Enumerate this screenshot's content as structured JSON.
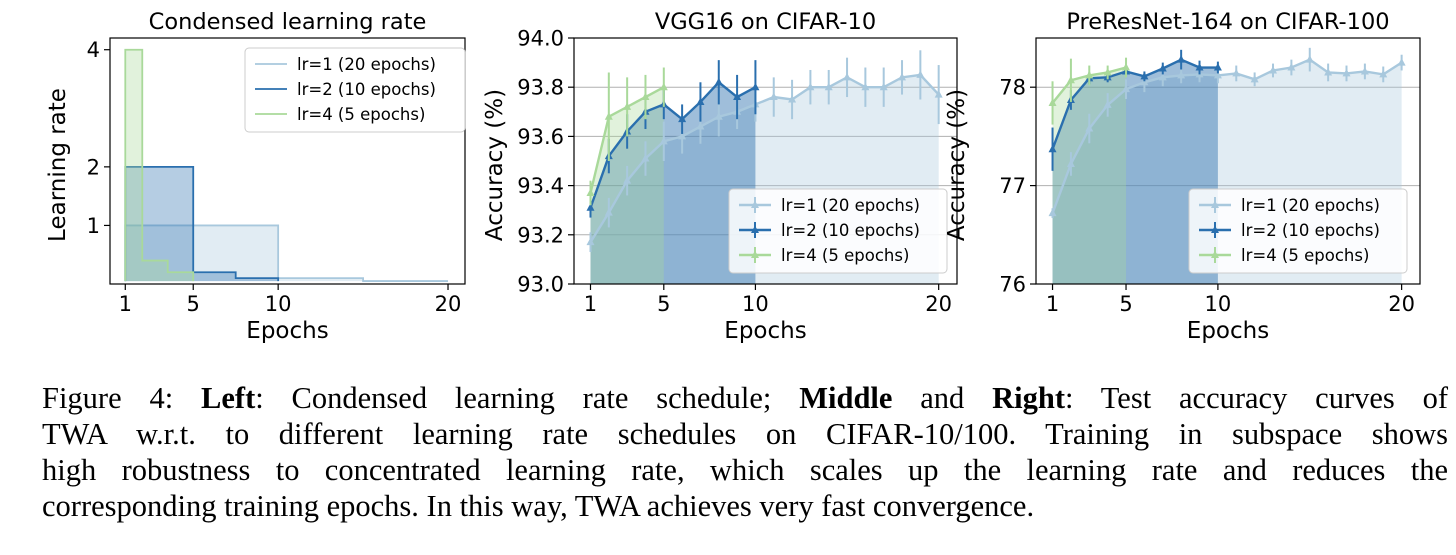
{
  "chart_data": [
    {
      "type": "line",
      "title": "Condensed learning rate",
      "xlabel": "Epochs",
      "ylabel": "Learning rate",
      "xlim": [
        0.1,
        21
      ],
      "ylim": [
        0,
        4.2
      ],
      "xticks": [
        1,
        5,
        10,
        20
      ],
      "yticks": [
        1,
        2,
        4
      ],
      "legend": "top-right",
      "series": [
        {
          "name": "lr=1 (20 epochs)",
          "color": "#a8c8dd",
          "steps": [
            [
              1,
              1
            ],
            [
              10,
              0.1
            ],
            [
              15,
              0.05
            ],
            [
              20,
              0.05
            ]
          ]
        },
        {
          "name": "lr=2 (10 epochs)",
          "color": "#2a6fae",
          "steps": [
            [
              1,
              2
            ],
            [
              5,
              0.2
            ],
            [
              7.5,
              0.1
            ],
            [
              10,
              0.1
            ]
          ]
        },
        {
          "name": "lr=4 (5 epochs)",
          "color": "#a9d99a",
          "steps": [
            [
              1,
              4
            ],
            [
              2,
              0.4
            ],
            [
              3.5,
              0.2
            ],
            [
              5,
              0.2
            ]
          ]
        }
      ]
    },
    {
      "type": "line",
      "title": "VGG16 on CIFAR-10",
      "xlabel": "Epochs",
      "ylabel": "Accuracy (%)",
      "xlim": [
        0.1,
        21
      ],
      "ylim": [
        93.0,
        94.0
      ],
      "xticks": [
        1,
        5,
        10,
        20
      ],
      "yticks": [
        "93.0",
        "93.2",
        "93.4",
        "93.6",
        "93.8",
        "94.0"
      ],
      "legend": "bottom-right",
      "series": [
        {
          "name": "lr=1 (20 epochs)",
          "color": "#a8c8dd",
          "x": [
            1,
            2,
            3,
            4,
            5,
            6,
            7,
            8,
            9,
            10,
            11,
            12,
            13,
            14,
            15,
            16,
            17,
            18,
            19,
            20
          ],
          "y": [
            93.17,
            93.29,
            93.42,
            93.51,
            93.58,
            93.6,
            93.64,
            93.68,
            93.7,
            93.73,
            93.76,
            93.75,
            93.8,
            93.8,
            93.84,
            93.8,
            93.8,
            93.84,
            93.85,
            93.77
          ],
          "err": [
            0.04,
            0.06,
            0.06,
            0.07,
            0.08,
            0.07,
            0.07,
            0.08,
            0.07,
            0.07,
            0.08,
            0.08,
            0.07,
            0.07,
            0.08,
            0.08,
            0.08,
            0.07,
            0.1,
            0.12
          ]
        },
        {
          "name": "lr=2 (10 epochs)",
          "color": "#2a6fae",
          "x": [
            1,
            2,
            3,
            4,
            5,
            6,
            7,
            8,
            9,
            10
          ],
          "y": [
            93.31,
            93.52,
            93.62,
            93.7,
            93.73,
            93.67,
            93.74,
            93.82,
            93.76,
            93.8
          ],
          "err": [
            0.04,
            0.07,
            0.07,
            0.07,
            0.06,
            0.06,
            0.08,
            0.09,
            0.09,
            0.11
          ]
        },
        {
          "name": "lr=4 (5 epochs)",
          "color": "#a9d99a",
          "x": [
            1,
            2,
            3,
            4,
            5
          ],
          "y": [
            93.37,
            93.68,
            93.72,
            93.76,
            93.8
          ],
          "err": [
            0.05,
            0.18,
            0.12,
            0.09,
            0.08
          ]
        }
      ]
    },
    {
      "type": "line",
      "title": "PreResNet-164 on CIFAR-100",
      "xlabel": "Epochs",
      "ylabel": "Accuracy (%)",
      "xlim": [
        0.1,
        21
      ],
      "ylim": [
        76,
        78.5
      ],
      "xticks": [
        1,
        5,
        10,
        20
      ],
      "yticks": [
        76,
        77,
        78
      ],
      "legend": "bottom-right",
      "series": [
        {
          "name": "lr=1 (20 epochs)",
          "color": "#a8c8dd",
          "x": [
            1,
            2,
            3,
            4,
            5,
            6,
            7,
            8,
            9,
            10,
            11,
            12,
            13,
            14,
            15,
            16,
            17,
            18,
            19,
            20
          ],
          "y": [
            76.72,
            77.22,
            77.58,
            77.82,
            77.98,
            78.05,
            78.1,
            78.12,
            78.13,
            78.12,
            78.14,
            78.08,
            78.17,
            78.2,
            78.28,
            78.15,
            78.14,
            78.16,
            78.13,
            78.25
          ],
          "err": [
            0.05,
            0.12,
            0.15,
            0.12,
            0.1,
            0.1,
            0.09,
            0.08,
            0.08,
            0.08,
            0.08,
            0.07,
            0.07,
            0.08,
            0.12,
            0.09,
            0.08,
            0.08,
            0.08,
            0.08
          ]
        },
        {
          "name": "lr=2 (10 epochs)",
          "color": "#2a6fae",
          "x": [
            1,
            2,
            3,
            4,
            5,
            6,
            7,
            8,
            9,
            10
          ],
          "y": [
            77.37,
            77.87,
            78.09,
            78.1,
            78.16,
            78.11,
            78.19,
            78.28,
            78.2,
            78.2
          ],
          "err": [
            0.22,
            0.1,
            0.06,
            0.05,
            0.05,
            0.05,
            0.06,
            0.1,
            0.07,
            0.06
          ]
        },
        {
          "name": "lr=4 (5 epochs)",
          "color": "#a9d99a",
          "x": [
            1,
            2,
            3,
            4,
            5
          ],
          "y": [
            77.84,
            78.07,
            78.12,
            78.15,
            78.2
          ],
          "err": [
            0.22,
            0.22,
            0.1,
            0.07,
            0.1
          ]
        }
      ]
    }
  ],
  "caption": {
    "lines": [
      [
        {
          "t": "Figure 4: "
        },
        {
          "t": "Left",
          "b": true
        },
        {
          "t": ":  Condensed learning rate schedule; "
        },
        {
          "t": "Middle",
          "b": true
        },
        {
          "t": " and "
        },
        {
          "t": "Right",
          "b": true
        },
        {
          "t": ":  Test accuracy curves of"
        }
      ],
      [
        {
          "t": "TWA w.r.t.  to different learning rate schedules on CIFAR-10/100.  Training in subspace shows"
        }
      ],
      [
        {
          "t": "high robustness to concentrated learning rate, which scales up the learning rate and reduces the"
        }
      ],
      [
        {
          "t": "corresponding training epochs. In this way, TWA achieves very fast convergence."
        }
      ]
    ]
  }
}
